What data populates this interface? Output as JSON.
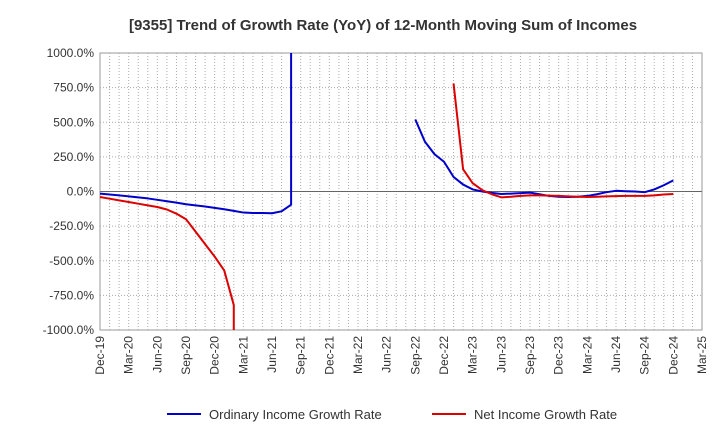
{
  "chart_data": {
    "type": "line",
    "title": "[9355]  Trend of Growth Rate (YoY) of 12-Month Moving Sum of Incomes",
    "xlabel": "",
    "ylabel": "",
    "ylim": [
      -1000,
      1000
    ],
    "yticks": [
      1000,
      750,
      500,
      250,
      0,
      -250,
      -500,
      -750,
      -1000
    ],
    "ytick_labels": [
      "1000.0%",
      "750.0%",
      "500.0%",
      "250.0%",
      "0.0%",
      "-250.0%",
      "-500.0%",
      "-750.0%",
      "-1000.0%"
    ],
    "x_tick_labels": [
      "Dec-19",
      "Mar-20",
      "Jun-20",
      "Sep-20",
      "Dec-20",
      "Mar-21",
      "Jun-21",
      "Sep-21",
      "Dec-21",
      "Mar-22",
      "Jun-22",
      "Sep-22",
      "Dec-22",
      "Mar-23",
      "Jun-23",
      "Sep-23",
      "Dec-23",
      "Mar-24",
      "Jun-24",
      "Sep-24",
      "Dec-24",
      "Mar-25"
    ],
    "grid": true,
    "legend_position": "bottom",
    "series": [
      {
        "name": "Ordinary Income Growth Rate",
        "color": "#0000cc",
        "points": [
          [
            "Dec-19",
            -15
          ],
          [
            "Jan-20",
            -22
          ],
          [
            "Feb-20",
            -28
          ],
          [
            "Mar-20",
            -35
          ],
          [
            "Apr-20",
            -42
          ],
          [
            "May-20",
            -50
          ],
          [
            "Jun-20",
            -60
          ],
          [
            "Jul-20",
            -70
          ],
          [
            "Aug-20",
            -80
          ],
          [
            "Sep-20",
            -92
          ],
          [
            "Oct-20",
            -100
          ],
          [
            "Nov-20",
            -108
          ],
          [
            "Dec-20",
            -118
          ],
          [
            "Jan-21",
            -128
          ],
          [
            "Feb-21",
            -140
          ],
          [
            "Mar-21",
            -152
          ],
          [
            "Apr-21",
            -155
          ],
          [
            "May-21",
            -155
          ],
          [
            "Jun-21",
            -157
          ],
          [
            "Jul-21",
            -143
          ],
          [
            "Aug-21",
            -95
          ],
          [
            "Aug-21",
            1000
          ],
          [
            null,
            null
          ],
          [
            "Sep-22",
            520
          ],
          [
            "Oct-22",
            360
          ],
          [
            "Nov-22",
            270
          ],
          [
            "Dec-22",
            215
          ],
          [
            "Jan-23",
            105
          ],
          [
            "Feb-23",
            50
          ],
          [
            "Mar-23",
            15
          ],
          [
            "Apr-23",
            0
          ],
          [
            "May-23",
            -10
          ],
          [
            "Jun-23",
            -18
          ],
          [
            "Jul-23",
            -15
          ],
          [
            "Aug-23",
            -12
          ],
          [
            "Sep-23",
            -8
          ],
          [
            "Oct-23",
            -20
          ],
          [
            "Nov-23",
            -32
          ],
          [
            "Dec-23",
            -38
          ],
          [
            "Jan-24",
            -40
          ],
          [
            "Feb-24",
            -38
          ],
          [
            "Mar-24",
            -32
          ],
          [
            "Apr-24",
            -20
          ],
          [
            "May-24",
            -5
          ],
          [
            "Jun-24",
            5
          ],
          [
            "Jul-24",
            2
          ],
          [
            "Aug-24",
            0
          ],
          [
            "Sep-24",
            -5
          ],
          [
            "Oct-24",
            15
          ],
          [
            "Nov-24",
            45
          ],
          [
            "Dec-24",
            80
          ]
        ]
      },
      {
        "name": "Net Income Growth Rate",
        "color": "#dd0000",
        "points": [
          [
            "Dec-19",
            -40
          ],
          [
            "Jan-20",
            -52
          ],
          [
            "Feb-20",
            -64
          ],
          [
            "Mar-20",
            -76
          ],
          [
            "Apr-20",
            -88
          ],
          [
            "May-20",
            -100
          ],
          [
            "Jun-20",
            -112
          ],
          [
            "Jul-20",
            -130
          ],
          [
            "Aug-20",
            -160
          ],
          [
            "Sep-20",
            -200
          ],
          [
            "Oct-20",
            -290
          ],
          [
            "Nov-20",
            -380
          ],
          [
            "Dec-20",
            -470
          ],
          [
            "Jan-21",
            -570
          ],
          [
            "Feb-21",
            -820
          ],
          [
            "Feb-21",
            -1000
          ],
          [
            null,
            null
          ],
          [
            "Jan-23",
            780
          ],
          [
            "Feb-23",
            160
          ],
          [
            "Mar-23",
            60
          ],
          [
            "Apr-23",
            10
          ],
          [
            "May-23",
            -20
          ],
          [
            "Jun-23",
            -42
          ],
          [
            "Jul-23",
            -38
          ],
          [
            "Aug-23",
            -32
          ],
          [
            "Sep-23",
            -28
          ],
          [
            "Oct-23",
            -28
          ],
          [
            "Nov-23",
            -30
          ],
          [
            "Dec-23",
            -32
          ],
          [
            "Jan-24",
            -35
          ],
          [
            "Feb-24",
            -38
          ],
          [
            "Mar-24",
            -40
          ],
          [
            "Apr-24",
            -38
          ],
          [
            "May-24",
            -35
          ],
          [
            "Jun-24",
            -33
          ],
          [
            "Jul-24",
            -32
          ],
          [
            "Aug-24",
            -32
          ],
          [
            "Sep-24",
            -32
          ],
          [
            "Oct-24",
            -28
          ],
          [
            "Nov-24",
            -22
          ],
          [
            "Dec-24",
            -18
          ]
        ]
      }
    ]
  }
}
